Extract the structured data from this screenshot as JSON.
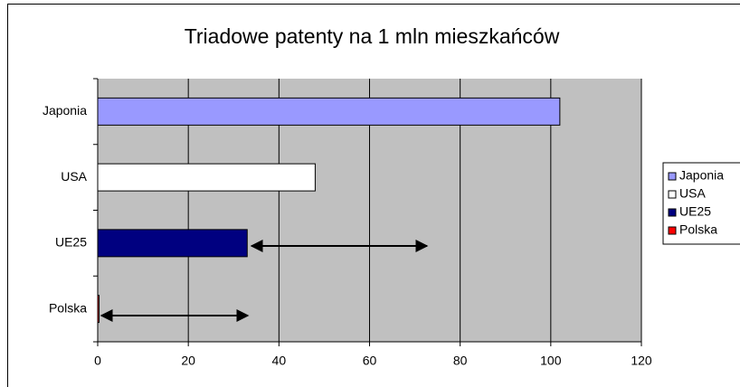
{
  "chart_data": {
    "type": "hbar",
    "title": "Triadowe patenty na 1 mln mieszkańców",
    "categories": [
      "Japonia",
      "USA",
      "UE25",
      "Polska"
    ],
    "values": [
      102,
      48,
      33,
      0.3
    ],
    "colors": [
      "#9999ff",
      "#ffffff",
      "#000080",
      "#ff0000"
    ],
    "xlim": [
      0,
      120
    ],
    "xticks": [
      0,
      20,
      40,
      60,
      80,
      100,
      120
    ],
    "grid": true,
    "legend": "right"
  }
}
